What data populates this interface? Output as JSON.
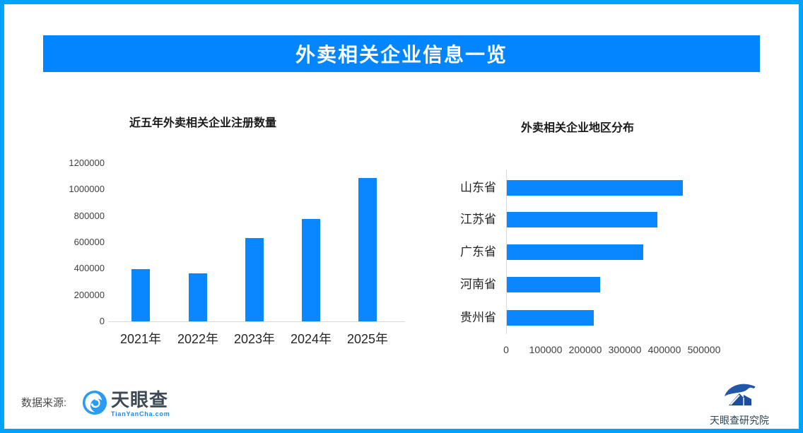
{
  "page": {
    "banner_title": "外卖相关企业信息一览"
  },
  "colors": {
    "border_blue": "#00A2FF",
    "banner_blue": "#0385FE",
    "bar_blue": "#0A86FE",
    "axis_gray": "#D9D9D9"
  },
  "footer": {
    "source_label": "数据来源:",
    "tianyancha_name": "天眼查",
    "tianyancha_sub": "TianYanCha.com",
    "institute_name": "天眼查研究院"
  },
  "chart_data": [
    {
      "type": "bar",
      "orientation": "vertical",
      "title": "近五年外卖相关企业注册数量",
      "categories": [
        "2021年",
        "2022年",
        "2023年",
        "2024年",
        "2025年"
      ],
      "values": [
        395000,
        365000,
        630000,
        775000,
        1090000
      ],
      "ylabel": "",
      "xlabel": "",
      "ylim": [
        0,
        1200000
      ],
      "yticks": [
        0,
        200000,
        400000,
        600000,
        800000,
        1000000,
        1200000
      ],
      "grid": false,
      "legend": false,
      "bar_color": "#0A86FE"
    },
    {
      "type": "bar",
      "orientation": "horizontal",
      "title": "外卖相关企业地区分布",
      "categories": [
        "山东省",
        "江苏省",
        "广东省",
        "河南省",
        "贵州省"
      ],
      "values": [
        445000,
        380000,
        345000,
        235000,
        220000
      ],
      "ylabel": "",
      "xlabel": "",
      "xlim": [
        0,
        500000
      ],
      "xticks": [
        0,
        100000,
        200000,
        300000,
        400000,
        500000
      ],
      "grid": false,
      "legend": false,
      "bar_color": "#0A86FE"
    }
  ]
}
